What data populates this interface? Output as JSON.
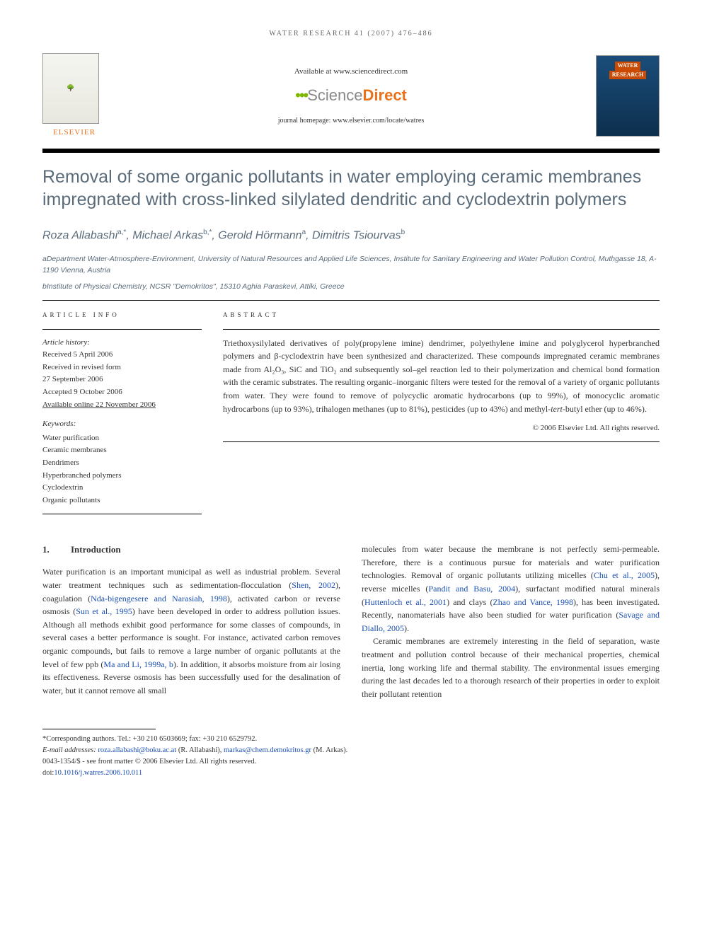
{
  "running_head": "WATER RESEARCH 41 (2007) 476–486",
  "header": {
    "elsevier_label": "ELSEVIER",
    "available_line": "Available at www.sciencedirect.com",
    "sd_dots": "•••",
    "sd_sci": "Science",
    "sd_direct": "Direct",
    "homepage_line": "journal homepage: www.elsevier.com/locate/watres",
    "cover_line1": "WATER",
    "cover_line2": "RESEARCH"
  },
  "title": "Removal of some organic pollutants in water employing ceramic membranes impregnated with cross-linked silylated dendritic and cyclodextrin polymers",
  "authors_html": "Roza Allabashi<sup>a,*</sup>, Michael Arkas<sup>b,*</sup>, Gerold Hörmann<sup>a</sup>, Dimitris Tsiourvas<sup>b</sup>",
  "affiliations": {
    "a": "aDepartment Water-Atmosphere-Environment, University of Natural Resources and Applied Life Sciences, Institute for Sanitary Engineering and Water Pollution Control, Muthgasse 18, A-1190 Vienna, Austria",
    "b": "bInstitute of Physical Chemistry, NCSR \"Demokritos\", 15310 Aghia Paraskevi, Attiki, Greece"
  },
  "info": {
    "section_head": "ARTICLE INFO",
    "history_head": "Article history:",
    "received": "Received 5 April 2006",
    "revised1": "Received in revised form",
    "revised2": "27 September 2006",
    "accepted": "Accepted 9 October 2006",
    "online": "Available online 22 November 2006",
    "keywords_head": "Keywords:",
    "keywords": [
      "Water purification",
      "Ceramic membranes",
      "Dendrimers",
      "Hyperbranched polymers",
      "Cyclodextrin",
      "Organic pollutants"
    ]
  },
  "abstract": {
    "section_head": "ABSTRACT",
    "text": "Triethoxysilylated derivatives of poly(propylene imine) dendrimer, polyethylene imine and polyglycerol hyperbranched polymers and β-cyclodextrin have been synthesized and characterized. These compounds impregnated ceramic membranes made from Al₂O₃, SiC and TiO₂ and subsequently sol–gel reaction led to their polymerization and chemical bond formation with the ceramic substrates. The resulting organic–inorganic filters were tested for the removal of a variety of organic pollutants from water. They were found to remove of polycyclic aromatic hydrocarbons (up to 99%), of monocyclic aromatic hydrocarbons (up to 93%), trihalogen methanes (up to 81%), pesticides (up to 43%) and methyl-tert-butyl ether (up to 46%).",
    "copyright": "© 2006 Elsevier Ltd. All rights reserved."
  },
  "section1": {
    "num": "1.",
    "title": "Introduction"
  },
  "col_left": {
    "p1a": "Water purification is an important municipal as well as industrial problem. Several water treatment techniques such as sedimentation-flocculation (",
    "r1": "Shen, 2002",
    "p1b": "), coagulation (",
    "r2": "Nda-bigengesere and Narasiah, 1998",
    "p1c": "), activated carbon or reverse osmosis (",
    "r3": "Sun et al., 1995",
    "p1d": ") have been developed in order to address pollution issues. Although all methods exhibit good performance for some classes of compounds, in several cases a better performance is sought. For instance, activated carbon removes organic compounds, but fails to remove a large number of organic pollutants at the level of few ppb (",
    "r4": "Ma and Li, 1999a, b",
    "p1e": "). In addition, it absorbs moisture from air losing its effectiveness. Reverse osmosis has been successfully used for the desalination of water, but it cannot remove all small"
  },
  "col_right": {
    "p1a": "molecules from water because the membrane is not perfectly semi-permeable. Therefore, there is a continuous pursue for materials and water purification technologies. Removal of organic pollutants utilizing micelles (",
    "r1": "Chu et al., 2005",
    "p1b": "), reverse micelles (",
    "r2": "Pandit and Basu, 2004",
    "p1c": "), surfactant modified natural minerals (",
    "r3": "Huttenloch et al., 2001",
    "p1d": ") and clays (",
    "r4": "Zhao and Vance, 1998",
    "p1e": "), has been investigated. Recently, nanomaterials have also been studied for water purification (",
    "r5": "Savage and Diallo, 2005",
    "p1f": ").",
    "p2": "Ceramic membranes are extremely interesting in the field of separation, waste treatment and pollution control because of their mechanical properties, chemical inertia, long working life and thermal stability. The environmental issues emerging during the last decades led to a thorough research of their properties in order to exploit their pollutant retention"
  },
  "footnotes": {
    "corr": "*Corresponding authors. Tel.: +30 210 6503669; fax: +30 210 6529792.",
    "email_label": "E-mail addresses:",
    "email1": "roza.allabashi@boku.ac.at",
    "email1_who": " (R. Allabashi), ",
    "email2": "markas@chem.demokritos.gr",
    "email2_who": " (M. Arkas).",
    "line3": "0043-1354/$ - see front matter © 2006 Elsevier Ltd. All rights reserved.",
    "doi_label": "doi:",
    "doi": "10.1016/j.watres.2006.10.011"
  },
  "colors": {
    "title_color": "#5a6b7a",
    "link_color": "#1a4fb3",
    "elsevier_orange": "#e9711c"
  }
}
